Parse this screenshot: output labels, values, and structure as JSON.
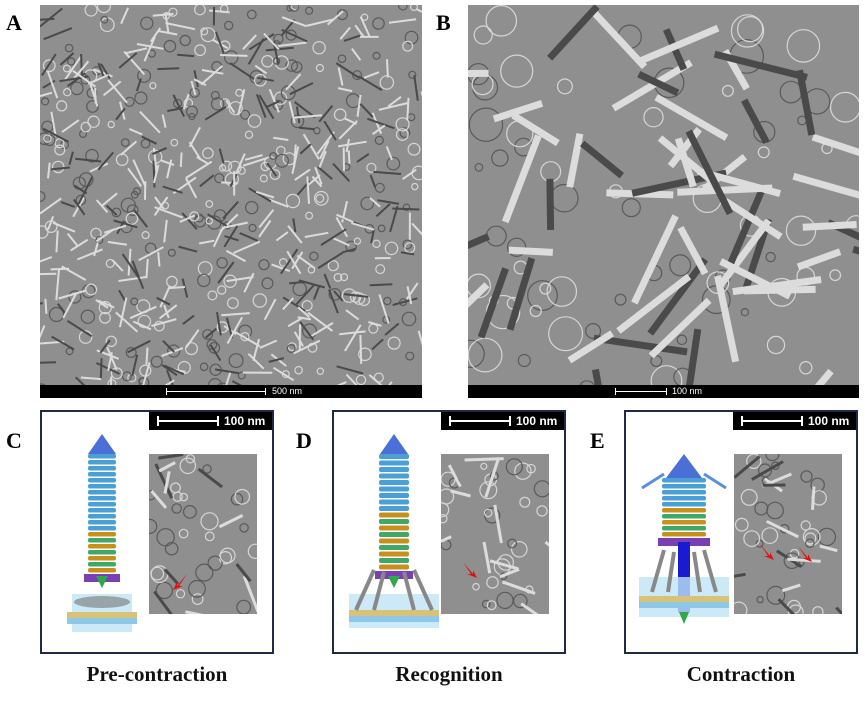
{
  "panels_top": [
    {
      "letter": "A",
      "scale": "500 nm"
    },
    {
      "letter": "B",
      "scale": "100 nm"
    }
  ],
  "panels_bottom": [
    {
      "letter": "C",
      "scale": "100 nm",
      "caption": "Pre-contraction"
    },
    {
      "letter": "D",
      "scale": "100 nm",
      "caption": "Recognition"
    },
    {
      "letter": "E",
      "scale": "100 nm",
      "caption": "Contraction"
    }
  ],
  "colors": {
    "frame": "#1f2a44",
    "arrow": "#e01010",
    "tail_blue": "#4a9fd6",
    "tail_orange": "#c8901a",
    "baseplate": "#7c3fb3",
    "membrane": "#9ad2ef"
  }
}
